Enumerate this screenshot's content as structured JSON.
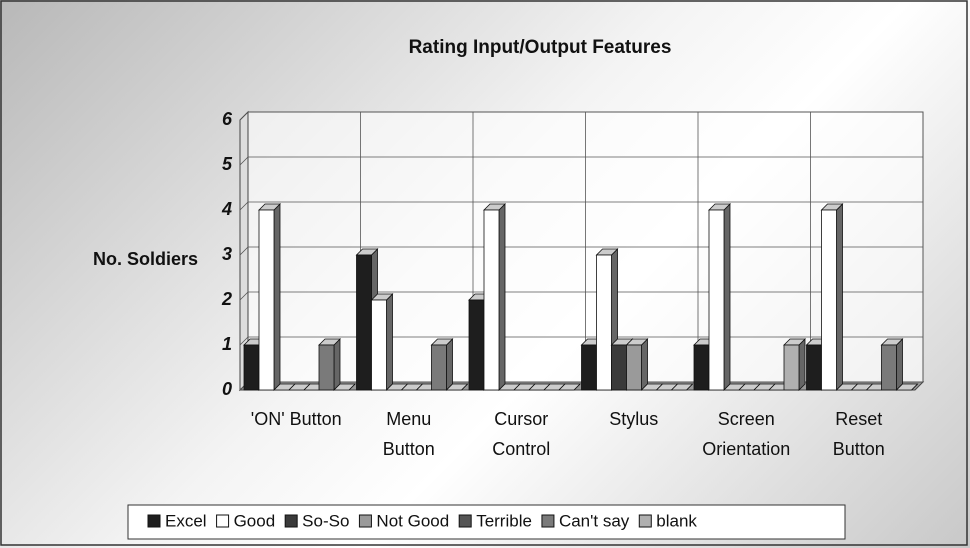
{
  "chart_data": {
    "type": "bar3d",
    "title": "Rating Input/Output Features",
    "y_label": "No. Soldiers",
    "categories": [
      "'ON' Button",
      "Menu Button",
      "Cursor Control",
      "Stylus",
      "Screen Orientation",
      "Reset Button"
    ],
    "series": [
      {
        "name": "Excel",
        "color": "#1e1e1e",
        "values": [
          1,
          3,
          2,
          1,
          1,
          1
        ]
      },
      {
        "name": "Good",
        "color": "#ffffff",
        "values": [
          4,
          2,
          4,
          3,
          4,
          4
        ]
      },
      {
        "name": "So-So",
        "color": "#3a3a3a",
        "values": [
          0,
          0,
          0,
          1,
          0,
          0
        ]
      },
      {
        "name": "Not Good",
        "color": "#9a9a9a",
        "values": [
          0,
          0,
          0,
          1,
          0,
          0
        ]
      },
      {
        "name": "Terrible",
        "color": "#555555",
        "values": [
          0,
          0,
          0,
          0,
          0,
          0
        ]
      },
      {
        "name": "Can't say",
        "color": "#7a7a7a",
        "values": [
          1,
          1,
          0,
          0,
          0,
          1
        ]
      },
      {
        "name": "blank",
        "color": "#b0b0b0",
        "values": [
          0,
          0,
          0,
          0,
          1,
          0
        ]
      }
    ],
    "ylim": [
      0,
      6
    ],
    "yticks": [
      0,
      1,
      2,
      3,
      4,
      5,
      6
    ],
    "grid": true,
    "legend": "bottom"
  }
}
